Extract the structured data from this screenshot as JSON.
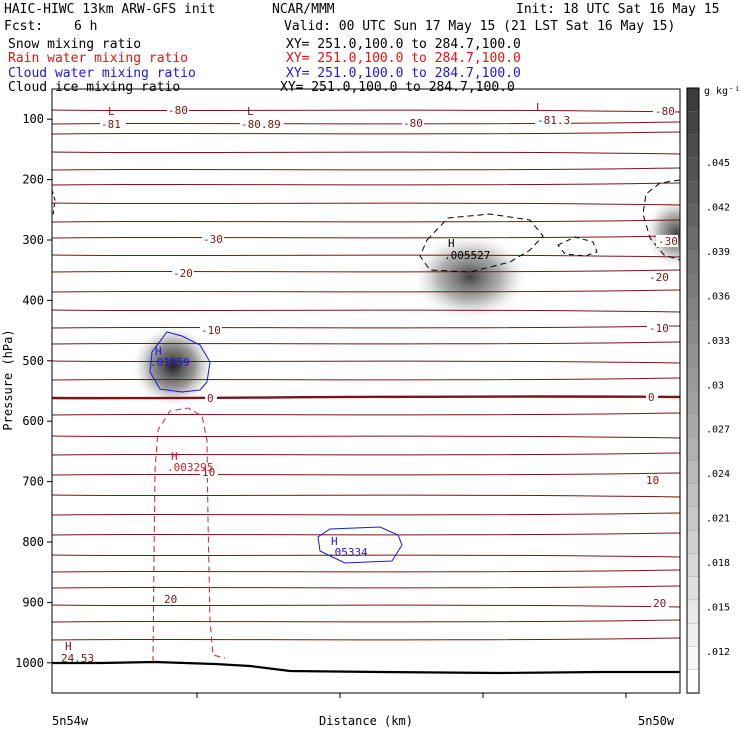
{
  "header": {
    "model": "HAIC-HIWC 13km ARW-GFS init",
    "org": "NCAR/MMM",
    "init": "Init: 18 UTC Sat 16 May 15",
    "fcst_label": "Fcst:",
    "fcst_value": "6 h",
    "valid": "Valid: 00 UTC Sun 17 May 15 (21 LST Sat 16 May 15)"
  },
  "fields": [
    {
      "name": "Snow mixing ratio",
      "xy": "XY= 251.0,100.0 to 284.7,100.0",
      "color": "#000000"
    },
    {
      "name": "Rain water mixing ratio",
      "xy": "XY= 251.0,100.0 to 284.7,100.0",
      "color": "#e8120f"
    },
    {
      "name": "Cloud water mixing ratio",
      "xy": "XY= 251.0,100.0 to 284.7,100.0",
      "color": "#1a1ad8"
    },
    {
      "name": "Cloud ice mixing ratio",
      "xy": "XY= 251.0,100.0 to 284.7,100.0",
      "color": "#000000"
    }
  ],
  "chart_data": {
    "type": "contour",
    "ylabel": "Pressure (hPa)",
    "xlabel": "Distance (km)",
    "x_left_label": "5n54w",
    "x_right_label": "5n50w",
    "yticks": [
      "100",
      "200",
      "300",
      "400",
      "500",
      "600",
      "700",
      "800",
      "900",
      "1000"
    ],
    "ylim": [
      50,
      1050
    ],
    "colorbar": {
      "unit": "g kg⁻¹",
      "labels": [
        ".045",
        ".042",
        ".039",
        ".036",
        ".033",
        ".03",
        ".027",
        ".024",
        ".021",
        ".018",
        ".015",
        ".012"
      ]
    },
    "temperature_labels": [
      "-80",
      "-81",
      "-80.89",
      "-80",
      "-81.3",
      "-80",
      "-30",
      "-30",
      "-20",
      "-20",
      "-10",
      "-10",
      "0",
      "0",
      "10",
      "10",
      "20",
      "20"
    ],
    "extrema": [
      {
        "kind": "L",
        "value": "-81"
      },
      {
        "kind": "L",
        "value": "-80.89"
      },
      {
        "kind": "L",
        "value": "-81.3"
      },
      {
        "kind": "H",
        "value": ".005527"
      },
      {
        "kind": "H",
        "value": ".01959"
      },
      {
        "kind": "H",
        "value": ".003295"
      },
      {
        "kind": "H",
        "value": ".05334"
      },
      {
        "kind": "H",
        "value": "24.53"
      }
    ],
    "colors": {
      "isotherm": "#7a1616",
      "rain": "#d62020",
      "cloud_water": "#1a1ad8",
      "ice": "#000000"
    }
  }
}
